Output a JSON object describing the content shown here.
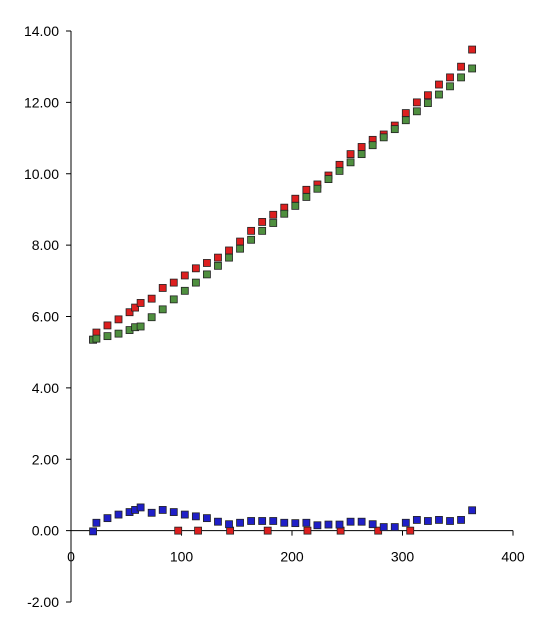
{
  "chart_data": {
    "type": "scatter",
    "title": "",
    "xlabel": "",
    "ylabel": "",
    "xlim": [
      0,
      400
    ],
    "ylim": [
      -2,
      14
    ],
    "x_ticks": [
      0,
      100,
      200,
      300,
      400
    ],
    "x_tick_labels": [
      "0",
      "100",
      "200",
      "300",
      "400"
    ],
    "y_ticks": [
      -2,
      0,
      2,
      4,
      6,
      8,
      10,
      12,
      14
    ],
    "y_tick_labels": [
      "-2.00",
      "0.00",
      "2.00",
      "4.00",
      "6.00",
      "8.00",
      "10.00",
      "12.00",
      "14.00"
    ],
    "grid": false,
    "legend": "none",
    "series": [
      {
        "color": "#dd1f1f",
        "points": [
          [
            20,
            5.35
          ],
          [
            23,
            5.55
          ],
          [
            33,
            5.75
          ],
          [
            43,
            5.92
          ],
          [
            53,
            6.12
          ],
          [
            58,
            6.25
          ],
          [
            63,
            6.38
          ],
          [
            73,
            6.5
          ],
          [
            83,
            6.8
          ],
          [
            93,
            6.95
          ],
          [
            103,
            7.15
          ],
          [
            113,
            7.35
          ],
          [
            123,
            7.5
          ],
          [
            133,
            7.65
          ],
          [
            143,
            7.85
          ],
          [
            153,
            8.1
          ],
          [
            163,
            8.4
          ],
          [
            173,
            8.65
          ],
          [
            183,
            8.85
          ],
          [
            193,
            9.05
          ],
          [
            203,
            9.3
          ],
          [
            213,
            9.55
          ],
          [
            223,
            9.7
          ],
          [
            233,
            9.95
          ],
          [
            243,
            10.25
          ],
          [
            253,
            10.55
          ],
          [
            263,
            10.75
          ],
          [
            273,
            10.95
          ],
          [
            283,
            11.1
          ],
          [
            293,
            11.35
          ],
          [
            303,
            11.7
          ],
          [
            313,
            12.0
          ],
          [
            323,
            12.2
          ],
          [
            333,
            12.5
          ],
          [
            343,
            12.7
          ],
          [
            353,
            13.0
          ],
          [
            363,
            13.48
          ],
          [
            97,
            0.0
          ],
          [
            115,
            0.0
          ],
          [
            144,
            0.0
          ],
          [
            178,
            0.0
          ],
          [
            214,
            0.0
          ],
          [
            244,
            0.0
          ],
          [
            278,
            0.0
          ],
          [
            307,
            0.0
          ]
        ]
      },
      {
        "color": "#4f8f3f",
        "points": [
          [
            20,
            5.35
          ],
          [
            23,
            5.38
          ],
          [
            33,
            5.45
          ],
          [
            43,
            5.52
          ],
          [
            53,
            5.62
          ],
          [
            58,
            5.7
          ],
          [
            63,
            5.72
          ],
          [
            73,
            5.98
          ],
          [
            83,
            6.2
          ],
          [
            93,
            6.48
          ],
          [
            103,
            6.72
          ],
          [
            113,
            6.95
          ],
          [
            123,
            7.18
          ],
          [
            133,
            7.42
          ],
          [
            143,
            7.65
          ],
          [
            153,
            7.9
          ],
          [
            163,
            8.15
          ],
          [
            173,
            8.4
          ],
          [
            183,
            8.62
          ],
          [
            193,
            8.88
          ],
          [
            203,
            9.1
          ],
          [
            213,
            9.35
          ],
          [
            223,
            9.58
          ],
          [
            233,
            9.85
          ],
          [
            243,
            10.08
          ],
          [
            253,
            10.32
          ],
          [
            263,
            10.55
          ],
          [
            273,
            10.8
          ],
          [
            283,
            11.02
          ],
          [
            293,
            11.25
          ],
          [
            303,
            11.5
          ],
          [
            313,
            11.75
          ],
          [
            323,
            11.98
          ],
          [
            333,
            12.22
          ],
          [
            343,
            12.45
          ],
          [
            353,
            12.7
          ],
          [
            363,
            12.95
          ]
        ]
      },
      {
        "color": "#1f1fc8",
        "points": [
          [
            20,
            -0.02
          ],
          [
            23,
            0.22
          ],
          [
            33,
            0.35
          ],
          [
            43,
            0.45
          ],
          [
            53,
            0.52
          ],
          [
            58,
            0.58
          ],
          [
            63,
            0.65
          ],
          [
            73,
            0.5
          ],
          [
            83,
            0.58
          ],
          [
            93,
            0.52
          ],
          [
            103,
            0.45
          ],
          [
            113,
            0.4
          ],
          [
            123,
            0.35
          ],
          [
            133,
            0.25
          ],
          [
            143,
            0.18
          ],
          [
            153,
            0.22
          ],
          [
            163,
            0.27
          ],
          [
            173,
            0.27
          ],
          [
            183,
            0.27
          ],
          [
            193,
            0.22
          ],
          [
            203,
            0.21
          ],
          [
            213,
            0.22
          ],
          [
            223,
            0.15
          ],
          [
            233,
            0.17
          ],
          [
            243,
            0.17
          ],
          [
            253,
            0.25
          ],
          [
            263,
            0.25
          ],
          [
            273,
            0.18
          ],
          [
            283,
            0.1
          ],
          [
            293,
            0.1
          ],
          [
            303,
            0.22
          ],
          [
            313,
            0.3
          ],
          [
            323,
            0.27
          ],
          [
            333,
            0.3
          ],
          [
            343,
            0.27
          ],
          [
            353,
            0.3
          ],
          [
            363,
            0.57
          ]
        ]
      }
    ]
  }
}
